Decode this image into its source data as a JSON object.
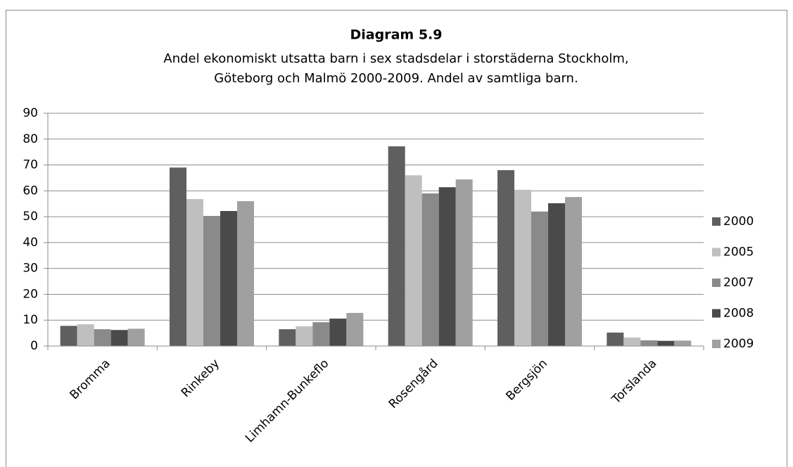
{
  "chart_data": {
    "type": "bar",
    "title": "Diagram 5.9",
    "subtitle": [
      "Andel ekonomiskt utsatta barn i sex stadsdelar i storstäderna Stockholm,",
      "Göteborg och Malmö 2000-2009. Andel av samtliga barn."
    ],
    "categories": [
      "Bromma",
      "Rinkeby",
      "Limhamn-Bunkeflo",
      "Rosengård",
      "Bergsjön",
      "Torslanda"
    ],
    "series": [
      {
        "name": "2000",
        "color": "#5f5f5f",
        "values": [
          7.8,
          69,
          6.5,
          77.2,
          68,
          5.2
        ]
      },
      {
        "name": "2005",
        "color": "#bfbfbf",
        "values": [
          8.4,
          56.8,
          7.6,
          66,
          60.4,
          3.3
        ]
      },
      {
        "name": "2007",
        "color": "#8a8a8a",
        "values": [
          6.5,
          50.3,
          9.2,
          59,
          52,
          2.2
        ]
      },
      {
        "name": "2008",
        "color": "#4a4a4a",
        "values": [
          6.2,
          52.2,
          10.6,
          61.4,
          55.2,
          2
        ]
      },
      {
        "name": "2009",
        "color": "#a0a0a0",
        "values": [
          6.7,
          56,
          12.8,
          64.4,
          57.6,
          2.1
        ]
      }
    ],
    "ylim": [
      0,
      90
    ],
    "yticks": [
      0,
      10,
      20,
      30,
      40,
      50,
      60,
      70,
      80,
      90
    ],
    "grid": true,
    "legend": "right"
  }
}
